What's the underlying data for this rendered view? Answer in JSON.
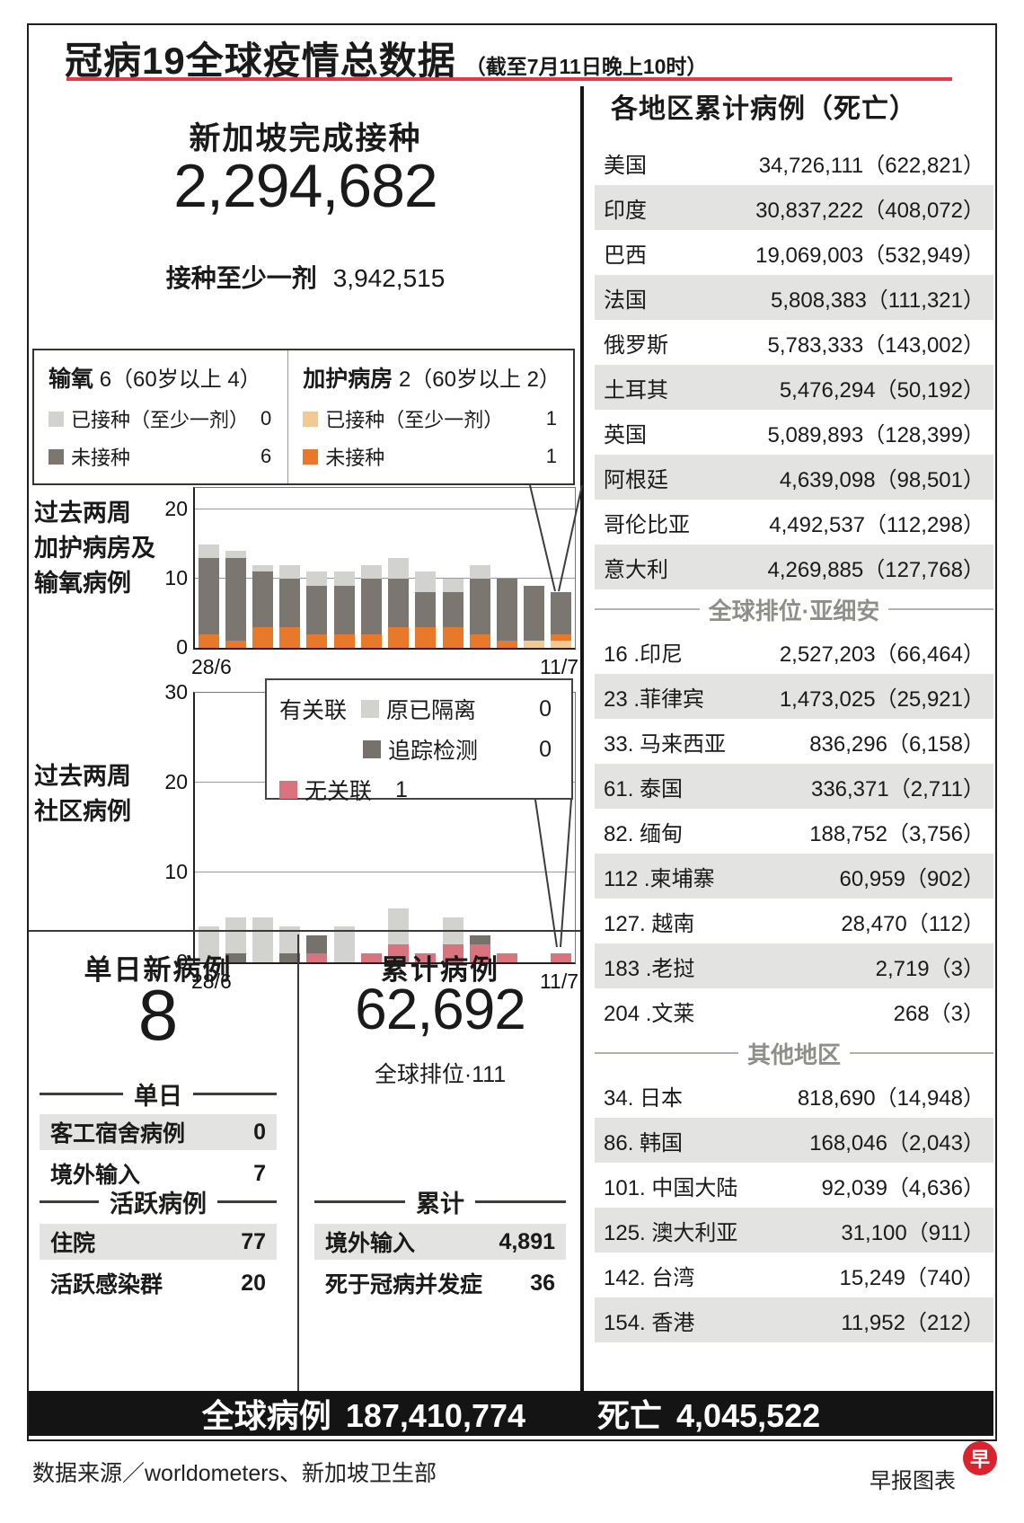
{
  "title": {
    "main": "冠病19全球疫情总数据",
    "asof": "（截至7月11日晚上10时）"
  },
  "vaccination": {
    "heading": "新加坡完成接种",
    "completed": "2,294,682",
    "dose1_label": "接种至少一剂",
    "dose1_value": "3,942,515"
  },
  "severity": {
    "oxygen": {
      "title": "输氧",
      "note": "6（60岁以上 4）",
      "r1": {
        "label": "已接种（至少一剂）",
        "value": "0",
        "color": "#d2d2cf"
      },
      "r2": {
        "label": "未接种",
        "value": "6",
        "color": "#7b7770"
      }
    },
    "icu": {
      "title": "加护病房",
      "note": "2（60岁以上 2）",
      "r1": {
        "label": "已接种（至少一剂）",
        "value": "1",
        "color": "#f2c992"
      },
      "r2": {
        "label": "未接种",
        "value": "1",
        "color": "#e8782a"
      }
    }
  },
  "chart_data": [
    {
      "type": "bar",
      "stacked": true,
      "title": "过去两周加护病房及输氧病例",
      "label_lines": [
        "过去两周",
        "加护病房及",
        "输氧病例"
      ],
      "x": [
        "28/6",
        "29/6",
        "30/6",
        "1/7",
        "2/7",
        "3/7",
        "4/7",
        "5/7",
        "6/7",
        "7/7",
        "8/7",
        "9/7",
        "10/7",
        "11/7"
      ],
      "ylim": [
        0,
        20
      ],
      "yticks": [
        0,
        10,
        20
      ],
      "grid": true,
      "series": [
        {
          "name": "加护病房已接种（至少一剂）",
          "color": "#f2c992",
          "values": [
            0,
            0,
            0,
            0,
            0,
            0,
            0,
            0,
            0,
            0,
            0,
            0,
            1,
            1
          ]
        },
        {
          "name": "加护病房未接种",
          "color": "#e8782a",
          "values": [
            2,
            1,
            3,
            3,
            2,
            2,
            2,
            3,
            3,
            3,
            2,
            1,
            0,
            1
          ]
        },
        {
          "name": "输氧未接种",
          "color": "#7b7770",
          "values": [
            11,
            12,
            8,
            7,
            7,
            7,
            8,
            7,
            5,
            5,
            8,
            9,
            8,
            6
          ]
        },
        {
          "name": "输氧已接种（至少一剂）",
          "color": "#d2d2cf",
          "values": [
            2,
            1,
            1,
            2,
            2,
            2,
            2,
            3,
            3,
            2,
            2,
            0,
            0,
            0
          ]
        }
      ]
    },
    {
      "type": "bar",
      "stacked": true,
      "title": "过去两周社区病例",
      "label_lines": [
        "过去两周",
        "社区病例"
      ],
      "x": [
        "28/6",
        "29/6",
        "30/6",
        "1/7",
        "2/7",
        "3/7",
        "4/7",
        "5/7",
        "6/7",
        "7/7",
        "8/7",
        "9/7",
        "10/7",
        "11/7"
      ],
      "ylim": [
        0,
        30
      ],
      "yticks": [
        0,
        10,
        20,
        30
      ],
      "grid": true,
      "series": [
        {
          "name": "无关联",
          "color": "#d9747f",
          "values": [
            0,
            0,
            0,
            0,
            1,
            0,
            1,
            2,
            1,
            2,
            2,
            1,
            0,
            1
          ]
        },
        {
          "name": "有关联·追踪检测",
          "color": "#76726b",
          "values": [
            0,
            1,
            0,
            1,
            2,
            0,
            0,
            0,
            0,
            0,
            1,
            0,
            0,
            0
          ]
        },
        {
          "name": "有关联·原已隔离",
          "color": "#d2d2cf",
          "values": [
            4,
            4,
            5,
            3,
            0,
            4,
            0,
            4,
            0,
            3,
            0,
            0,
            0,
            0
          ]
        }
      ],
      "legend": {
        "group": "有关联",
        "i1_label": "原已隔离",
        "i1_value": "0",
        "i1_color": "#d2d2cf",
        "i2_label": "追踪检测",
        "i2_value": "0",
        "i2_color": "#76726b",
        "i3_label": "无关联",
        "i3_value": "1",
        "i3_color": "#d9747f"
      }
    }
  ],
  "daily": {
    "heading": "单日新病例",
    "value": "8",
    "div1": "单日",
    "rows1": [
      {
        "label": "客工宿舍病例",
        "value": "0"
      },
      {
        "label": "境外输入",
        "value": "7"
      }
    ],
    "div2": "活跃病例",
    "rows2": [
      {
        "label": "住院",
        "value": "77"
      },
      {
        "label": "活跃感染群",
        "value": "20"
      }
    ]
  },
  "cumulative": {
    "heading": "累计病例",
    "value": "62,692",
    "rank": "全球排位·111",
    "div": "累计",
    "rows": [
      {
        "label": "境外输入",
        "value": "4,891"
      },
      {
        "label": "死于冠病并发症",
        "value": "36"
      }
    ]
  },
  "regions": {
    "heading": "各地区累计病例（死亡）",
    "top": [
      {
        "name": "美国",
        "value": "34,726,111（622,821）"
      },
      {
        "name": "印度",
        "value": "30,837,222（408,072）"
      },
      {
        "name": "巴西",
        "value": "19,069,003（532,949）"
      },
      {
        "name": "法国",
        "value": "5,808,383（111,321）"
      },
      {
        "name": "俄罗斯",
        "value": "5,783,333（143,002）"
      },
      {
        "name": "土耳其",
        "value": "5,476,294（50,192）"
      },
      {
        "name": "英国",
        "value": "5,089,893（128,399）"
      },
      {
        "name": "阿根廷",
        "value": "4,639,098（98,501）"
      },
      {
        "name": "哥伦比亚",
        "value": "4,492,537（112,298）"
      },
      {
        "name": "意大利",
        "value": "4,269,885（127,768）"
      }
    ],
    "asean_header": "全球排位·亚细安",
    "asean": [
      {
        "name": "16 .印尼",
        "value": "2,527,203（66,464）"
      },
      {
        "name": "23 .菲律宾",
        "value": "1,473,025（25,921）"
      },
      {
        "name": "33. 马来西亚",
        "value": "836,296（6,158）"
      },
      {
        "name": "61. 泰国",
        "value": "336,371（2,711）"
      },
      {
        "name": "82. 缅甸",
        "value": "188,752（3,756）"
      },
      {
        "name": "112 .柬埔寨",
        "value": "60,959（902）"
      },
      {
        "name": "127. 越南",
        "value": "28,470（112）"
      },
      {
        "name": "183 .老挝",
        "value": "2,719（3）"
      },
      {
        "name": "204 .文莱",
        "value": "268（3）"
      }
    ],
    "others_header": "其他地区",
    "others": [
      {
        "name": "34. 日本",
        "value": "818,690（14,948）"
      },
      {
        "name": "86. 韩国",
        "value": "168,046（2,043）"
      },
      {
        "name": "101. 中国大陆",
        "value": "92,039（4,636）"
      },
      {
        "name": "125. 澳大利亚",
        "value": "31,100（911）"
      },
      {
        "name": "142. 台湾",
        "value": "15,249（740）"
      },
      {
        "name": "154. 香港",
        "value": "11,952（212）"
      }
    ]
  },
  "totals_bar": {
    "cases_label": "全球病例",
    "cases": "187,410,774",
    "deaths_label": "死亡",
    "deaths": "4,045,522"
  },
  "footer": {
    "source": "数据来源／worldometers、新加坡卫生部",
    "credit": "早报图表",
    "logo_char": "早"
  },
  "colors": {
    "accent_red": "#e8384a",
    "bar_black": "#141414",
    "row_shade": "#e3e3e1"
  }
}
